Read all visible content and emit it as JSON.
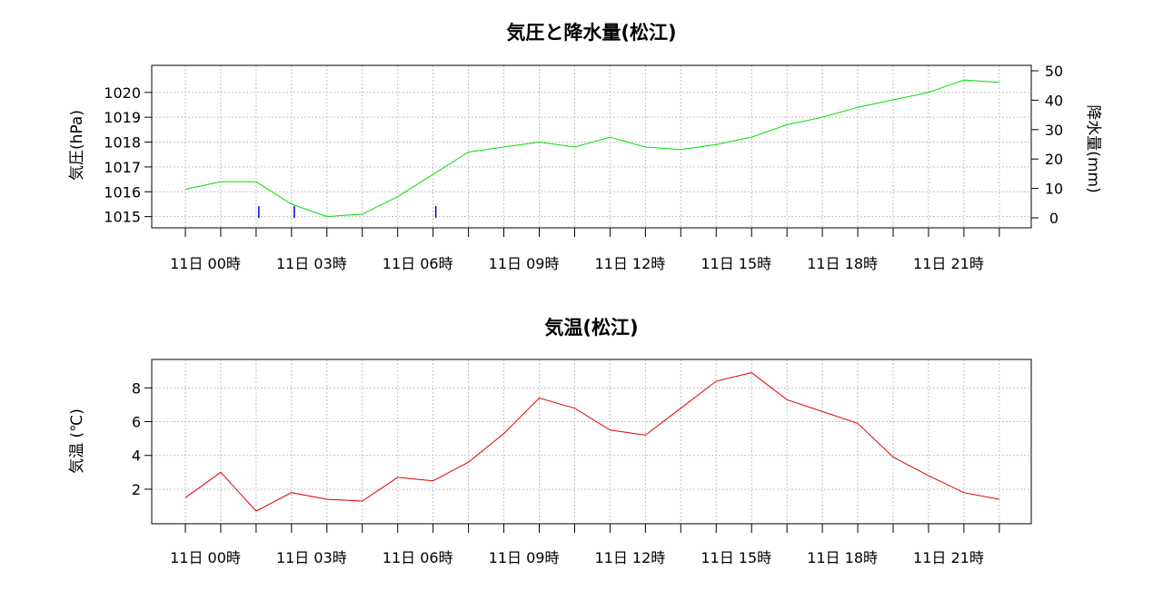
{
  "colors": {
    "pressure": "#00e000",
    "temperature": "#e00000",
    "precipitation": "#0000e0",
    "grid": "#bfbfbf",
    "frame": "#000000"
  },
  "chart_data": [
    {
      "type": "line",
      "title": "気圧と降水量(松江)",
      "ylabel": "気圧(hPa)",
      "y2label": "降水量(mm)",
      "ylim": [
        1014.95,
        1020.65
      ],
      "y2lim": [
        0,
        50
      ],
      "yticks": [
        "1015",
        "1016",
        "1017",
        "1018",
        "1019",
        "1020"
      ],
      "y2ticks": [
        "0",
        "10",
        "20",
        "30",
        "40",
        "50"
      ],
      "xtick_labels": [
        "11日 00時",
        "11日 03時",
        "11日 06時",
        "11日 09時",
        "11日 12時",
        "11日 15時",
        "11日 18時",
        "11日 21時"
      ],
      "grid": true,
      "series": [
        {
          "values": [
            1016.1,
            1016.4,
            1016.4,
            1015.5,
            1015.0,
            1015.1,
            1015.8,
            1016.7,
            1017.6,
            1017.8,
            1018.0,
            1017.8,
            1018.2,
            1017.8,
            1017.7,
            1017.9,
            1018.2,
            1018.7,
            1019.0,
            1019.4,
            1019.7,
            1020.0,
            1020.5,
            1020.4
          ]
        },
        {
          "type": "bar",
          "axis": "right",
          "values": [
            0,
            0,
            0.5,
            0.5,
            0,
            0,
            0,
            0.5,
            0,
            0,
            0,
            0,
            0,
            0,
            0,
            0,
            0,
            0,
            0,
            0,
            0,
            0,
            0,
            0
          ]
        }
      ]
    },
    {
      "type": "line",
      "title": "気温(松江)",
      "ylabel": "気温 (℃)",
      "ylim": [
        0.6,
        9.2
      ],
      "yticks": [
        "2",
        "4",
        "6",
        "8"
      ],
      "xtick_labels": [
        "11日 00時",
        "11日 03時",
        "11日 06時",
        "11日 09時",
        "11日 12時",
        "11日 15時",
        "11日 18時",
        "11日 21時"
      ],
      "grid": true,
      "series": [
        {
          "values": [
            1.5,
            3.0,
            0.7,
            1.8,
            1.4,
            1.3,
            2.7,
            2.5,
            3.6,
            5.3,
            7.4,
            6.8,
            5.5,
            5.2,
            6.8,
            8.4,
            8.9,
            7.3,
            6.6,
            5.9,
            3.9,
            2.8,
            1.8,
            1.4
          ]
        }
      ]
    }
  ]
}
